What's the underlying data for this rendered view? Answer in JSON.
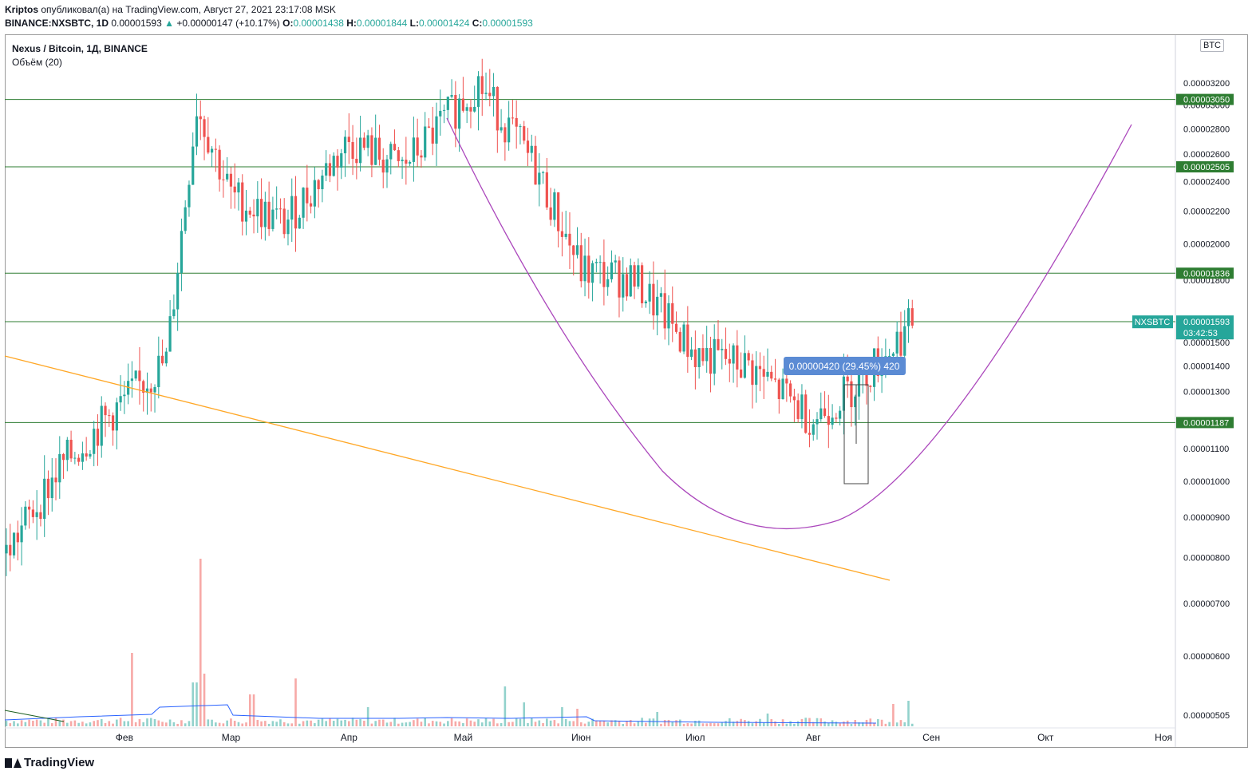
{
  "header": {
    "author": "Kriptos",
    "published_text": "опубликовал(а) на TradingView.com, Август 27, 2021 23:17:08 MSK",
    "ticker": "BINANCE:NXSBTC, 1D",
    "last": "0.00001593",
    "arrow": "▲",
    "change": "+0.00000147 (+10.17%)",
    "o_label": "O:",
    "o": "0.00001438",
    "h_label": "H:",
    "h": "0.00001844",
    "l_label": "L:",
    "l": "0.00001424",
    "c_label": "C:",
    "c": "0.00001593"
  },
  "legend": {
    "symbol": "Nexus / Bitcoin, 1Д, BINANCE",
    "volume": "Объём (20)"
  },
  "currency_badge": "BTC",
  "footer": {
    "brand": "TradingView"
  },
  "colors": {
    "up": "#26a69a",
    "down": "#ef5350",
    "level": "#2e7d32",
    "trendline": "#ffa726",
    "curve": "#ab47bc",
    "vol_ma": "#2962ff",
    "measure": "#5b8bd4",
    "price_tag": "#26a69a"
  },
  "chart_data": {
    "type": "candlestick",
    "title": "Nexus / Bitcoin, 1Д, BINANCE",
    "x_ticks": [
      "Фев",
      "Мар",
      "Апр",
      "Май",
      "Июн",
      "Июл",
      "Авг",
      "Сен",
      "Окт",
      "Ноя"
    ],
    "y_ticks": [
      "0.00003200",
      "0.00003000",
      "0.00002800",
      "0.00002600",
      "0.00002400",
      "0.00002200",
      "0.00002000",
      "0.00001800",
      "0.00001500",
      "0.00001400",
      "0.00001300",
      "0.00001100",
      "0.00001000",
      "0.00000900",
      "0.00000800",
      "0.00000700",
      "0.00000600",
      "0.00000505"
    ],
    "y_scale": "log",
    "horizontal_levels": [
      "0.00003050",
      "0.00002505",
      "0.00001836",
      "0.00001594",
      "0.00001187"
    ],
    "current_price": {
      "symbol": "NXSBTC",
      "price": "0.00001593",
      "countdown": "03:42:53"
    },
    "measure": {
      "label": "0.00000420 (29.45%) 420"
    },
    "series_points": [
      {
        "x": "2021-01-01",
        "y": 8.1e-06
      },
      {
        "x": "2021-01-15",
        "y": 1.04e-05
      },
      {
        "x": "2021-01-31",
        "y": 1.25e-05
      },
      {
        "x": "2021-02-12",
        "y": 1.42e-05
      },
      {
        "x": "2021-02-20",
        "y": 3e-05
      },
      {
        "x": "2021-03-01",
        "y": 2.3e-05
      },
      {
        "x": "2021-03-15",
        "y": 2.12e-05
      },
      {
        "x": "2021-04-01",
        "y": 2.7e-05
      },
      {
        "x": "2021-04-15",
        "y": 2.5e-05
      },
      {
        "x": "2021-05-05",
        "y": 3.2e-05
      },
      {
        "x": "2021-05-20",
        "y": 2.5e-05
      },
      {
        "x": "2021-06-01",
        "y": 1.85e-05
      },
      {
        "x": "2021-06-15",
        "y": 1.8e-05
      },
      {
        "x": "2021-07-01",
        "y": 1.45e-05
      },
      {
        "x": "2021-07-15",
        "y": 1.4e-05
      },
      {
        "x": "2021-08-01",
        "y": 1.2e-05
      },
      {
        "x": "2021-08-10",
        "y": 1.3e-05
      },
      {
        "x": "2021-08-20",
        "y": 1.45e-05
      },
      {
        "x": "2021-08-27",
        "y": 1.59e-05
      }
    ]
  }
}
